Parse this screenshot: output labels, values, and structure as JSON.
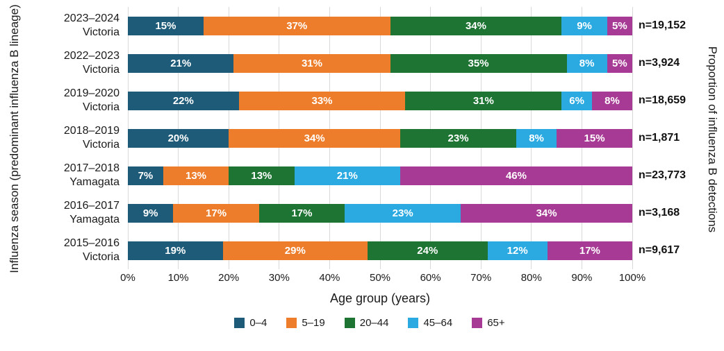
{
  "chart_data": {
    "type": "bar",
    "variant": "horizontal-stacked",
    "xlabel": "Age group (years)",
    "ylabel_left": "Influenza season (predominant influenza B lineage)",
    "ylabel_right": "Proportion of influenza B detections",
    "xlim": [
      0,
      100
    ],
    "x_ticks": [
      "0%",
      "10%",
      "20%",
      "30%",
      "40%",
      "50%",
      "60%",
      "70%",
      "80%",
      "90%",
      "100%"
    ],
    "grid": true,
    "legend_position": "bottom",
    "categories": [
      {
        "season": "2023–2024",
        "lineage": "Victoria",
        "n_label": "n=19,152"
      },
      {
        "season": "2022–2023",
        "lineage": "Victoria",
        "n_label": "n=3,924"
      },
      {
        "season": "2019–2020",
        "lineage": "Victoria",
        "n_label": "n=18,659"
      },
      {
        "season": "2018–2019",
        "lineage": "Victoria",
        "n_label": "n=1,871"
      },
      {
        "season": "2017–2018",
        "lineage": "Yamagata",
        "n_label": "n=23,773"
      },
      {
        "season": "2016–2017",
        "lineage": "Yamagata",
        "n_label": "n=3,168"
      },
      {
        "season": "2015–2016",
        "lineage": "Victoria",
        "n_label": "n=9,617"
      }
    ],
    "series": [
      {
        "name": "0–4",
        "color": "#1E5B78",
        "values": [
          15,
          21,
          22,
          20,
          7,
          9,
          19
        ]
      },
      {
        "name": "5–19",
        "color": "#ED7D2B",
        "values": [
          37,
          31,
          33,
          34,
          13,
          17,
          29
        ]
      },
      {
        "name": "20–44",
        "color": "#1E7433",
        "values": [
          34,
          35,
          31,
          23,
          13,
          17,
          24
        ]
      },
      {
        "name": "45–64",
        "color": "#2BAAE2",
        "values": [
          9,
          8,
          6,
          8,
          21,
          23,
          12
        ]
      },
      {
        "name": "65+",
        "color": "#A63A94",
        "values": [
          5,
          5,
          8,
          15,
          46,
          34,
          17
        ]
      }
    ],
    "gridline_color": "#d9d9d9"
  }
}
